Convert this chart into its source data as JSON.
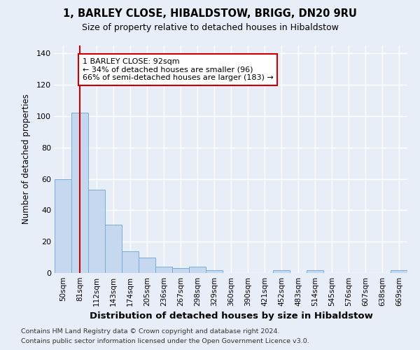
{
  "title": "1, BARLEY CLOSE, HIBALDSTOW, BRIGG, DN20 9RU",
  "subtitle": "Size of property relative to detached houses in Hibaldstow",
  "xlabel": "Distribution of detached houses by size in Hibaldstow",
  "ylabel": "Number of detached properties",
  "bar_color": "#c5d8f0",
  "bar_edge_color": "#7aadd4",
  "fig_bg_color": "#e8eef8",
  "ax_bg_color": "#e8eef8",
  "grid_color": "#ffffff",
  "vline_color": "#cc0000",
  "vline_x": 1,
  "annotation_text": "1 BARLEY CLOSE: 92sqm\n← 34% of detached houses are smaller (96)\n66% of semi-detached houses are larger (183) →",
  "annotation_box_color": "#ffffff",
  "annotation_box_edge": "#cc0000",
  "categories": [
    "50sqm",
    "81sqm",
    "112sqm",
    "143sqm",
    "174sqm",
    "205sqm",
    "236sqm",
    "267sqm",
    "298sqm",
    "329sqm",
    "360sqm",
    "390sqm",
    "421sqm",
    "452sqm",
    "483sqm",
    "514sqm",
    "545sqm",
    "576sqm",
    "607sqm",
    "638sqm",
    "669sqm"
  ],
  "values": [
    60,
    102,
    53,
    31,
    14,
    10,
    4,
    3,
    4,
    2,
    0,
    0,
    0,
    2,
    0,
    2,
    0,
    0,
    0,
    0,
    2
  ],
  "ylim": [
    0,
    145
  ],
  "yticks": [
    0,
    20,
    40,
    60,
    80,
    100,
    120,
    140
  ],
  "footer1": "Contains HM Land Registry data © Crown copyright and database right 2024.",
  "footer2": "Contains public sector information licensed under the Open Government Licence v3.0."
}
